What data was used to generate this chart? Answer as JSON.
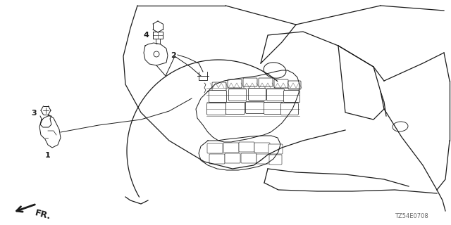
{
  "background_color": "#ffffff",
  "line_color": "#1a1a1a",
  "diagram_code": "TZ54E0708",
  "fr_label": "FR.",
  "label_fontsize": 8,
  "diagram_code_fontsize": 6
}
